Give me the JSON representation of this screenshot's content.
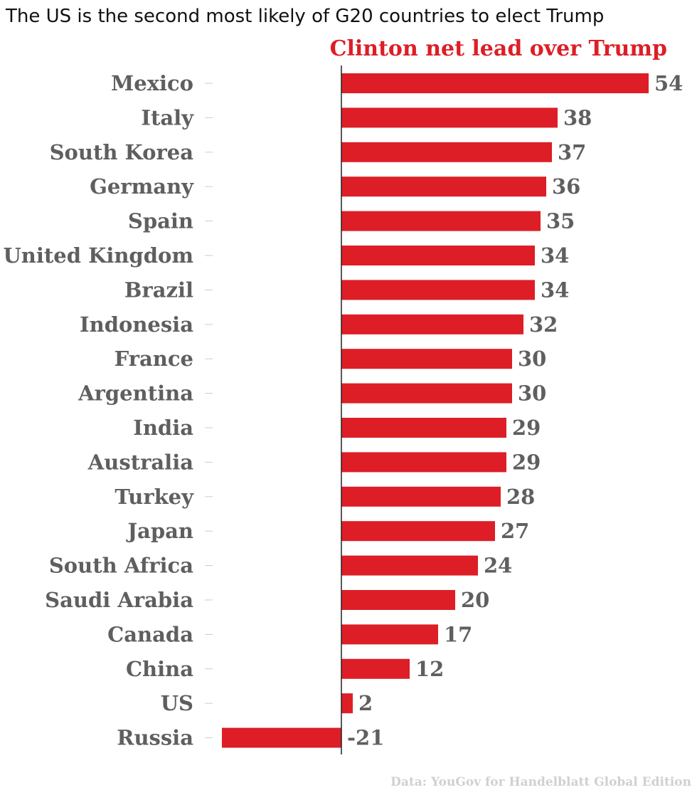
{
  "title": "The US is the second most likely of G20 countries to elect Trump",
  "source": "Data: YouGov for Handelblatt Global Edition",
  "colors": {
    "bar": "#dd1e26",
    "series_label": "#dd1e26",
    "category_text": "#5f5f5f",
    "data_label_text": "#5f5f5f",
    "axis_line": "#222222",
    "tick": "#cccccc",
    "source_text": "#d0d0d0"
  },
  "chart_data": {
    "type": "bar",
    "orientation": "horizontal",
    "categories": [
      "Mexico",
      "Italy",
      "South Korea",
      "Germany",
      "Spain",
      "United Kingdom",
      "Brazil",
      "Indonesia",
      "France",
      "Argentina",
      "India",
      "Australia",
      "Turkey",
      "Japan",
      "South Africa",
      "Saudi Arabia",
      "Canada",
      "China",
      "US",
      "Russia"
    ],
    "series": [
      {
        "name": "Clinton net lead over Trump",
        "values": [
          54,
          38,
          37,
          36,
          35,
          34,
          34,
          32,
          30,
          30,
          29,
          29,
          28,
          27,
          24,
          20,
          17,
          12,
          2,
          -21
        ]
      }
    ],
    "grid": false,
    "legend": "top"
  }
}
